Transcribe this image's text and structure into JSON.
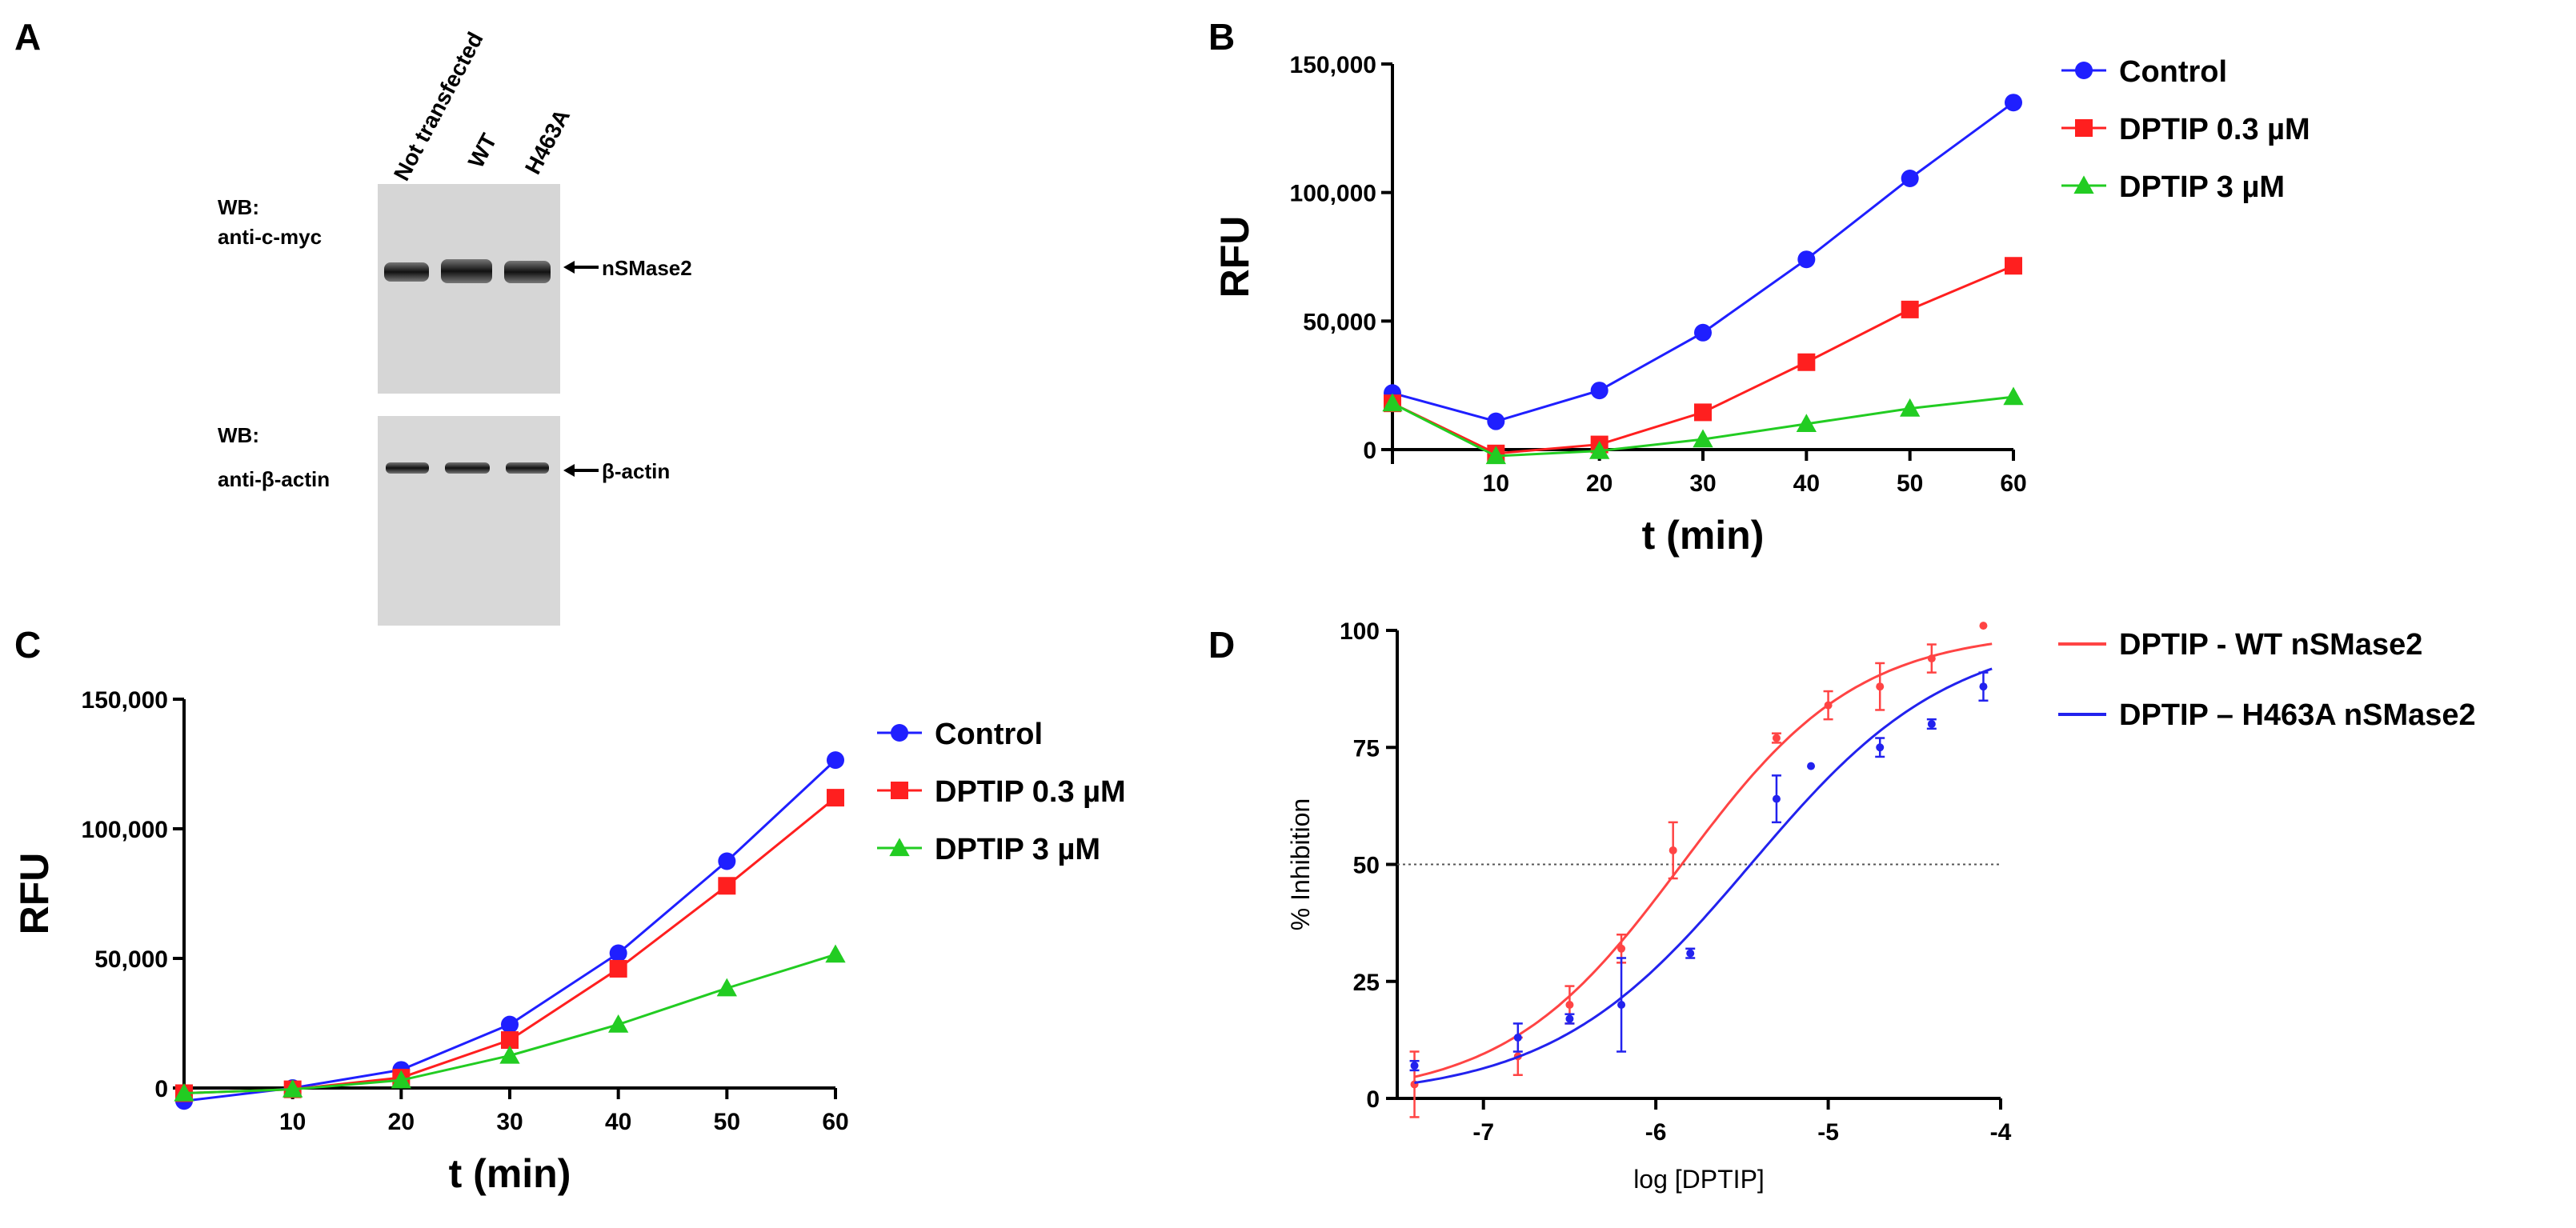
{
  "panels": {
    "A": {
      "letter": "A",
      "lanes": [
        "Not transfected",
        "WT",
        "H463A"
      ],
      "blot1": {
        "wb_line1": "WB:",
        "wb_line2": "anti-c-myc",
        "band_label": "nSMase2"
      },
      "blot2": {
        "wb_line1": "WB:",
        "wb_line2": "anti-β-actin",
        "band_label": "β-actin"
      }
    },
    "B": {
      "letter": "B"
    },
    "C": {
      "letter": "C"
    },
    "D": {
      "letter": "D"
    }
  },
  "colors": {
    "control": "#1f1fff",
    "dptip03": "#ff1f1f",
    "dptip3": "#22cc22",
    "wt": "#ff4444",
    "h463a": "#2222ee"
  },
  "chart_data": [
    {
      "id": "B",
      "type": "line",
      "xlabel": "t (min)",
      "ylabel": "RFU",
      "xlim": [
        0,
        60
      ],
      "ylim": [
        0,
        150000
      ],
      "x_ticks": [
        "10",
        "20",
        "30",
        "40",
        "50",
        "60"
      ],
      "y_ticks": [
        "0",
        "50,000",
        "100,000",
        "150,000"
      ],
      "x": [
        0,
        10,
        20,
        30,
        40,
        50,
        60
      ],
      "series": [
        {
          "name": "Control",
          "marker": "circle",
          "values": [
            22000,
            11000,
            23000,
            45500,
            74000,
            105500,
            135000
          ]
        },
        {
          "name": "DPTIP 0.3 µM",
          "marker": "square",
          "values": [
            18000,
            -1500,
            2000,
            14500,
            34000,
            54500,
            71500
          ]
        },
        {
          "name": "DPTIP 3 µM",
          "marker": "triangle",
          "values": [
            18000,
            -2500,
            -500,
            4000,
            10000,
            16000,
            20500
          ]
        }
      ],
      "legend": [
        "Control",
        "DPTIP 0.3 µM",
        "DPTIP 3 µM"
      ]
    },
    {
      "id": "C",
      "type": "line",
      "xlabel": "t (min)",
      "ylabel": "RFU",
      "xlim": [
        0,
        60
      ],
      "ylim": [
        0,
        150000
      ],
      "x_ticks": [
        "10",
        "20",
        "30",
        "40",
        "50",
        "60"
      ],
      "y_ticks": [
        "0",
        "50,000",
        "100,000",
        "150,000"
      ],
      "x": [
        0,
        10,
        20,
        30,
        40,
        50,
        60
      ],
      "series": [
        {
          "name": "Control",
          "marker": "circle",
          "values": [
            -5000,
            0,
            7000,
            24500,
            52000,
            87500,
            126500
          ]
        },
        {
          "name": "DPTIP 0.3 µM",
          "marker": "square",
          "values": [
            -2000,
            -500,
            4000,
            18500,
            46000,
            78000,
            112000
          ]
        },
        {
          "name": "DPTIP 3 µM",
          "marker": "triangle",
          "values": [
            -2000,
            -500,
            3000,
            12500,
            24500,
            38500,
            51500
          ]
        }
      ],
      "legend": [
        "Control",
        "DPTIP 0.3 µM",
        "DPTIP 3 µM"
      ]
    },
    {
      "id": "D",
      "type": "scatter",
      "xlabel": "log [DPTIP]",
      "ylabel": "% Inhibition",
      "xlim": [
        -7.5,
        -4
      ],
      "ylim": [
        0,
        100
      ],
      "x_ticks": [
        "-7",
        "-6",
        "-5",
        "-4"
      ],
      "y_ticks": [
        "0",
        "25",
        "50",
        "75",
        "100"
      ],
      "reference_line_y": 50,
      "series": [
        {
          "name": "DPTIP - WT nSMase2",
          "x": [
            -7.4,
            -6.8,
            -6.5,
            -6.2,
            -5.9,
            -5.3,
            -5.0,
            -4.7,
            -4.4,
            -4.1
          ],
          "y": [
            3,
            9,
            20,
            32,
            53,
            77,
            84,
            88,
            94,
            101
          ],
          "err": [
            7,
            4,
            4,
            3,
            6,
            1,
            3,
            5,
            3,
            0
          ],
          "fit": {
            "bottom": 0,
            "top": 100,
            "log_ic50": -5.85,
            "hill": 0.85
          }
        },
        {
          "name": "DPTIP – H463A nSMase2",
          "x": [
            -7.4,
            -6.8,
            -6.5,
            -6.2,
            -5.8,
            -5.3,
            -5.1,
            -4.7,
            -4.4,
            -4.1
          ],
          "y": [
            7,
            13,
            17,
            20,
            31,
            64,
            71,
            75,
            80,
            88
          ],
          "err": [
            1,
            3,
            1,
            10,
            1,
            5,
            0,
            2,
            1,
            3
          ],
          "fit": {
            "bottom": 0,
            "top": 100,
            "log_ic50": -5.45,
            "hill": 0.75
          }
        }
      ],
      "legend": [
        "DPTIP - WT nSMase2",
        "DPTIP – H463A nSMase2"
      ]
    }
  ]
}
